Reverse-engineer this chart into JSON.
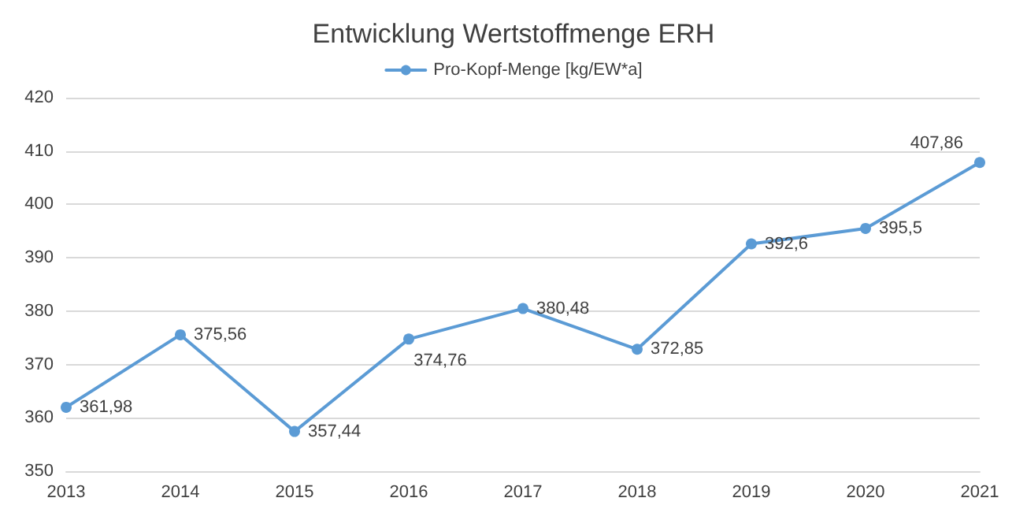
{
  "chart_data": {
    "type": "line",
    "title": "Entwicklung Wertstoffmenge ERH",
    "x": [
      2013,
      2014,
      2015,
      2016,
      2017,
      2018,
      2019,
      2020,
      2021
    ],
    "series": [
      {
        "name": "Pro-Kopf-Menge [kg/EW*a]",
        "color": "#5b9bd5",
        "values": [
          361.98,
          375.56,
          357.44,
          374.76,
          380.48,
          372.85,
          392.6,
          395.5,
          407.86
        ],
        "value_labels": [
          "361,98",
          "375,56",
          "357,44",
          "374,76",
          "380,48",
          "372,85",
          "392,6",
          "395,5",
          "407,86"
        ]
      }
    ],
    "xlim": [
      2013,
      2021
    ],
    "xticks": [
      2013,
      2014,
      2015,
      2016,
      2017,
      2018,
      2019,
      2020,
      2021
    ],
    "ylim": [
      350,
      420
    ],
    "yticks": [
      350,
      360,
      370,
      380,
      390,
      400,
      410,
      420
    ],
    "grid": "y",
    "legend": "top",
    "marker": "circle",
    "line_style": "solid"
  }
}
